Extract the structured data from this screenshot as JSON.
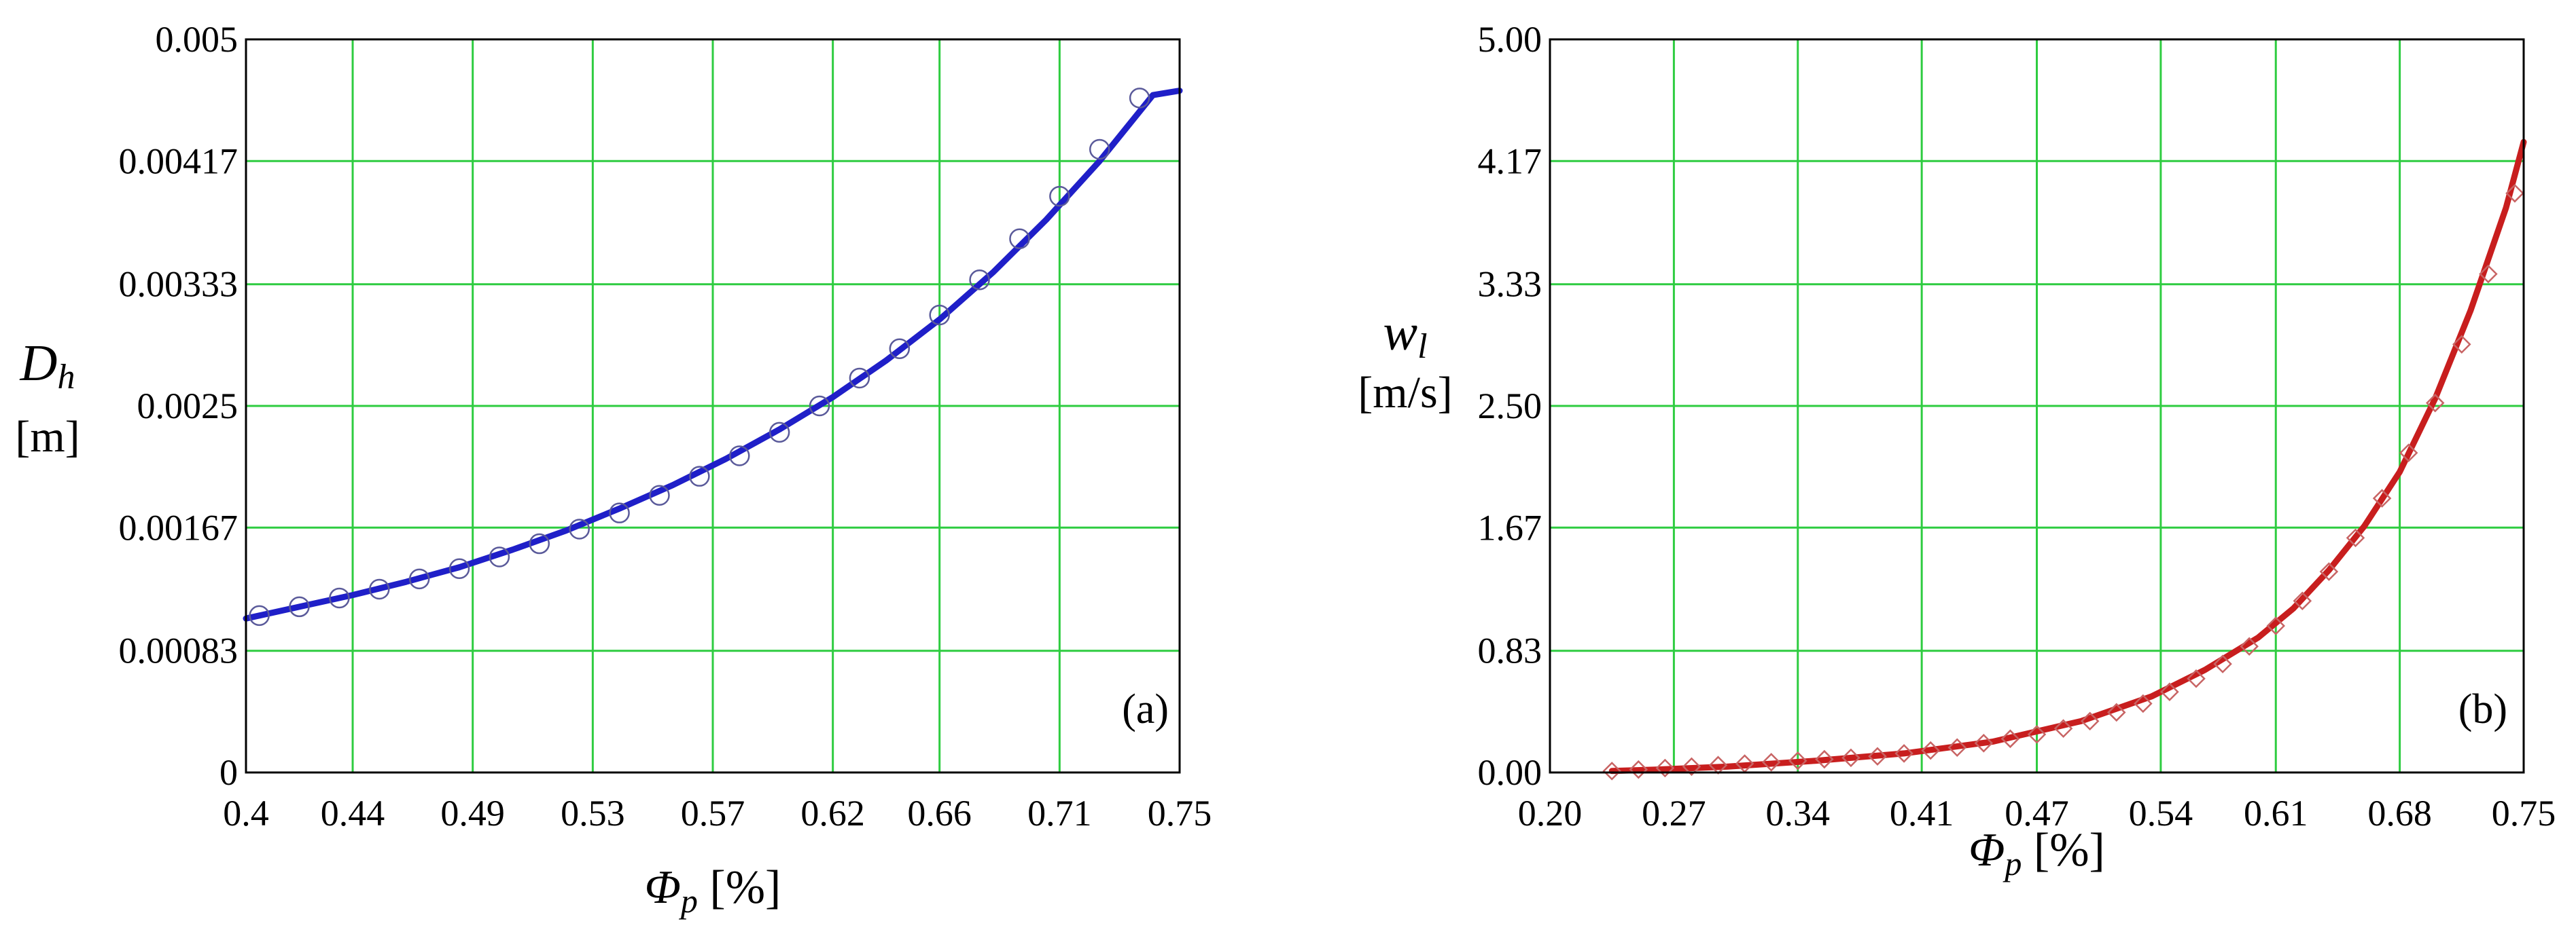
{
  "chart_data": [
    {
      "type": "line",
      "panel_label": "(a)",
      "ylabel": "D",
      "ylabel_sub": "h",
      "ylabel_unit": "[m]",
      "xlabel": "Φ",
      "xlabel_sub": "p",
      "xlabel_unit": " [%]",
      "xlim": [
        0.4,
        0.75
      ],
      "ylim": [
        0,
        0.005
      ],
      "x_ticks": [
        0.4,
        0.44,
        0.485,
        0.53,
        0.575,
        0.62,
        0.66,
        0.705,
        0.75
      ],
      "x_tick_labels": [
        "0.4",
        "0.44",
        "0.49",
        "0.53",
        "0.57",
        "0.62",
        "0.66",
        "0.71",
        "0.75"
      ],
      "y_ticks": [
        0,
        0.00083,
        0.00167,
        0.0025,
        0.00333,
        0.00417,
        0.005
      ],
      "y_tick_labels": [
        "0",
        "0.00083",
        "0.00167",
        "0.0025",
        "0.00333",
        "0.00417",
        "0.005"
      ],
      "grid": true,
      "colors": {
        "line": "#1f1fc8",
        "marker": "#5a5a9a",
        "grid": "#2ecc40"
      },
      "series": [
        {
          "style": "line",
          "x": [
            0.4,
            0.42,
            0.44,
            0.46,
            0.48,
            0.5,
            0.52,
            0.54,
            0.56,
            0.58,
            0.6,
            0.62,
            0.64,
            0.66,
            0.68,
            0.7,
            0.72,
            0.74,
            0.75
          ],
          "y": [
            0.00105,
            0.00113,
            0.00121,
            0.0013,
            0.0014,
            0.00152,
            0.00165,
            0.0018,
            0.00196,
            0.00214,
            0.00234,
            0.00256,
            0.00281,
            0.00309,
            0.00341,
            0.00377,
            0.00417,
            0.00462,
            0.00465
          ]
        },
        {
          "style": "markers",
          "marker": "circle",
          "x": [
            0.405,
            0.42,
            0.435,
            0.45,
            0.465,
            0.48,
            0.495,
            0.51,
            0.525,
            0.54,
            0.555,
            0.57,
            0.585,
            0.6,
            0.615,
            0.63,
            0.645,
            0.66,
            0.675,
            0.69,
            0.705,
            0.72,
            0.735
          ],
          "y": [
            0.00107,
            0.00113,
            0.00119,
            0.00125,
            0.00132,
            0.00139,
            0.00147,
            0.00156,
            0.00166,
            0.00177,
            0.00189,
            0.00202,
            0.00216,
            0.00232,
            0.0025,
            0.00269,
            0.00289,
            0.00312,
            0.00336,
            0.00364,
            0.00393,
            0.00425,
            0.0046
          ]
        }
      ]
    },
    {
      "type": "line",
      "panel_label": "(b)",
      "ylabel": "w",
      "ylabel_sub": "l",
      "ylabel_unit": "[m/s]",
      "xlabel": "Φ",
      "xlabel_sub": "p",
      "xlabel_unit": " [%]",
      "xlim": [
        0.2,
        0.75
      ],
      "ylim": [
        0,
        5
      ],
      "x_ticks": [
        0.2,
        0.27,
        0.34,
        0.41,
        0.475,
        0.545,
        0.61,
        0.68,
        0.75
      ],
      "x_tick_labels": [
        "0.20",
        "0.27",
        "0.34",
        "0.41",
        "0.47",
        "0.54",
        "0.61",
        "0.68",
        "0.75"
      ],
      "y_ticks": [
        0,
        0.83,
        1.67,
        2.5,
        3.33,
        4.17,
        5
      ],
      "y_tick_labels": [
        "0.00",
        "0.83",
        "1.67",
        "2.50",
        "3.33",
        "4.17",
        "5.00"
      ],
      "grid": true,
      "colors": {
        "line": "#c81e1e",
        "marker": "#c86464",
        "grid": "#2ecc40"
      },
      "series": [
        {
          "style": "line",
          "x": [
            0.235,
            0.26,
            0.3,
            0.35,
            0.4,
            0.45,
            0.5,
            0.54,
            0.57,
            0.6,
            0.62,
            0.64,
            0.66,
            0.68,
            0.7,
            0.72,
            0.74,
            0.75
          ],
          "y": [
            0.01,
            0.02,
            0.04,
            0.08,
            0.13,
            0.21,
            0.35,
            0.52,
            0.7,
            0.92,
            1.12,
            1.38,
            1.68,
            2.05,
            2.55,
            3.15,
            3.85,
            4.3
          ]
        },
        {
          "style": "markers",
          "marker": "diamond",
          "x": [
            0.235,
            0.25,
            0.265,
            0.28,
            0.295,
            0.31,
            0.325,
            0.34,
            0.355,
            0.37,
            0.385,
            0.4,
            0.415,
            0.43,
            0.445,
            0.46,
            0.475,
            0.49,
            0.505,
            0.52,
            0.535,
            0.55,
            0.565,
            0.58,
            0.595,
            0.61,
            0.625,
            0.64,
            0.655,
            0.67,
            0.685,
            0.7,
            0.715,
            0.73,
            0.745
          ],
          "y": [
            0.01,
            0.02,
            0.03,
            0.04,
            0.05,
            0.06,
            0.07,
            0.08,
            0.09,
            0.1,
            0.11,
            0.13,
            0.15,
            0.17,
            0.2,
            0.23,
            0.26,
            0.3,
            0.35,
            0.41,
            0.47,
            0.55,
            0.64,
            0.74,
            0.86,
            1.0,
            1.17,
            1.37,
            1.6,
            1.87,
            2.18,
            2.52,
            2.92,
            3.4,
            3.95
          ]
        }
      ]
    }
  ]
}
